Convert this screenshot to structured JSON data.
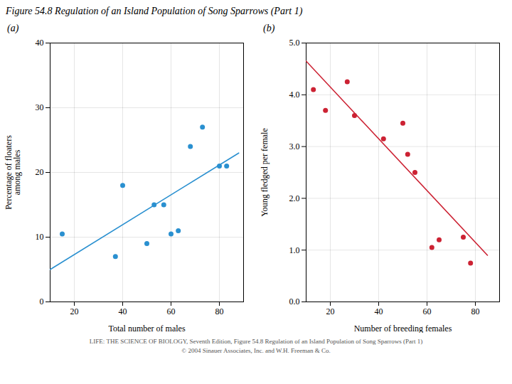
{
  "title": "Figure 54.8  Regulation of an Island Population of Song Sparrows (Part 1)",
  "annotations": [
    "LIFE: THE SCIENCE OF BIOLOGY, Seventh Edition, Figure 54.8 Regulation of an Island Population of Song Sparrows (Part 1)",
    "© 2004 Sinauer Associates, Inc. and W.H. Freeman & Co."
  ],
  "chart_data": [
    {
      "type": "scatter",
      "title": "(a)",
      "xlabel": "Total number of males",
      "ylabel": "Percentage of floaters\namong males",
      "xlim": [
        10,
        90
      ],
      "ylim": [
        0,
        40
      ],
      "xticks": [
        20,
        40,
        60,
        80
      ],
      "yticks": [
        0,
        10,
        20,
        30,
        40
      ],
      "grid": true,
      "series": [
        {
          "type": "scatter",
          "color": "#2a90d0",
          "x": [
            15,
            37,
            40,
            50,
            53,
            57,
            60,
            63,
            68,
            73,
            80,
            83
          ],
          "values": [
            10.5,
            7,
            18,
            9,
            15,
            15,
            10.5,
            11,
            24,
            27,
            21,
            21
          ]
        },
        {
          "type": "line",
          "color": "#2a90d0",
          "x": [
            10,
            88
          ],
          "values": [
            5,
            23
          ]
        }
      ]
    },
    {
      "type": "scatter",
      "title": "(b)",
      "xlabel": "Number of breeding females",
      "ylabel": "Young fledged per female",
      "xlim": [
        10,
        90
      ],
      "ylim": [
        0,
        5
      ],
      "xticks": [
        20,
        40,
        60,
        80
      ],
      "yticks": [
        0,
        1,
        2,
        3,
        4,
        5
      ],
      "grid": true,
      "series": [
        {
          "type": "scatter",
          "color": "#cc2233",
          "x": [
            13,
            18,
            27,
            30,
            42,
            50,
            52,
            55,
            62,
            65,
            75,
            78
          ],
          "values": [
            4.1,
            3.7,
            4.25,
            3.6,
            3.15,
            3.45,
            2.85,
            2.5,
            1.05,
            1.2,
            1.25,
            0.75
          ]
        },
        {
          "type": "line",
          "color": "#cc2233",
          "x": [
            10,
            85
          ],
          "values": [
            4.65,
            0.9
          ]
        }
      ]
    }
  ]
}
